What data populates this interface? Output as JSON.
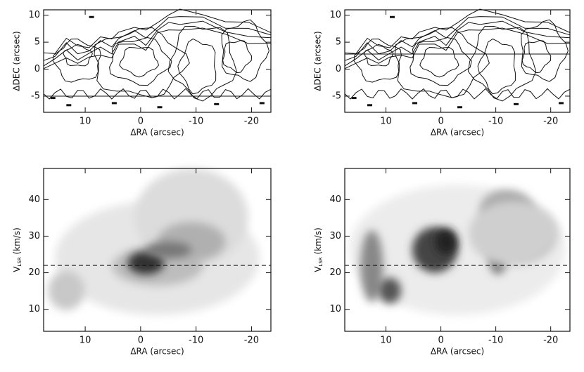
{
  "chart_data": [
    {
      "type": "contour",
      "xlabel": "ΔRA (arcsec)",
      "ylabel": "ΔDEC (arcsec)",
      "xlim": [
        17.5,
        -23.5
      ],
      "xticks": [
        10,
        0,
        -10,
        -20
      ],
      "ylim": [
        -8,
        11
      ],
      "yticks": [
        -5,
        0,
        5,
        10
      ],
      "hline": -5,
      "hline_style": "solid"
    },
    {
      "type": "contour",
      "xlabel": "ΔRA (arcsec)",
      "ylabel": "ΔDEC (arcsec)",
      "xlim": [
        17.5,
        -23.5
      ],
      "xticks": [
        10,
        0,
        -10,
        -20
      ],
      "ylim": [
        -8,
        11
      ],
      "yticks": [
        -5,
        0,
        5,
        10
      ],
      "hline": 2.8,
      "hline_style": "solid"
    },
    {
      "type": "heatmap",
      "xlabel": "ΔRA (arcsec)",
      "ylabel": {
        "main": "V",
        "sub": "LSR",
        "unit": " (km/s)"
      },
      "xlim": [
        17.5,
        -23.5
      ],
      "xticks": [
        10,
        0,
        -10,
        -20
      ],
      "ylim": [
        4,
        48.5
      ],
      "yticks": [
        10,
        20,
        30,
        40
      ],
      "hline": 22,
      "hline_style": "dashed"
    },
    {
      "type": "heatmap",
      "xlabel": "ΔRA (arcsec)",
      "ylabel": {
        "main": "V",
        "sub": "LSR",
        "unit": " (km/s)"
      },
      "xlim": [
        17.5,
        -23.5
      ],
      "xticks": [
        10,
        0,
        -10,
        -20
      ],
      "ylim": [
        4,
        48.5
      ],
      "yticks": [
        10,
        20,
        30,
        40
      ],
      "hline": 22,
      "hline_style": "dashed"
    }
  ]
}
